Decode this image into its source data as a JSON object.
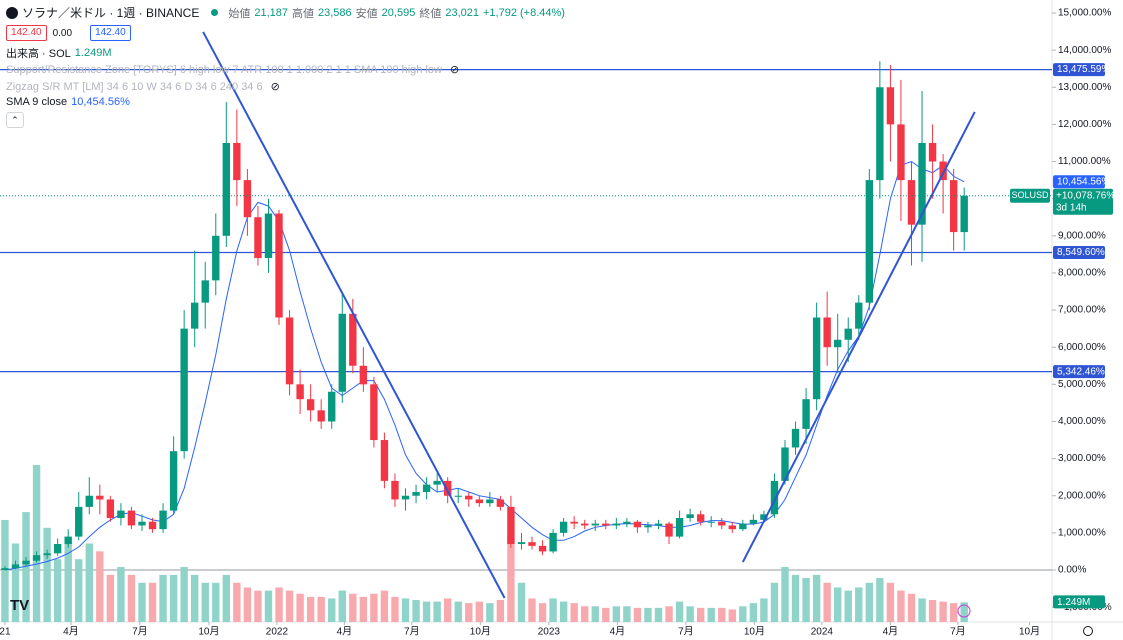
{
  "chart_data": {
    "type": "candlestick",
    "title": "ソラナ／米ドル · 1週 · BINANCE",
    "ohlc_legend": [
      {
        "label": "始値",
        "value": "21,187"
      },
      {
        "label": "高値",
        "value": "23,586"
      },
      {
        "label": "安値",
        "value": "20,595"
      },
      {
        "label": "終値",
        "value": "23,021"
      }
    ],
    "change": "+1,792 (+8.44%)",
    "price_boxes": [
      "142.40",
      "0.00",
      "142.40"
    ],
    "volume_title": "出来高 · SOL",
    "indicators": [
      "Support/Resistance Zone [TORYS] 6 high low 7 ATR 100 1 1.000 2 1 1 SMA 100 high low",
      "Zigzag S/R MT [LM] 34 6 10 W 34 6 D 34 6 240 34 6"
    ],
    "sma_title": "SMA 9 close",
    "sma_label": "10,454.56%",
    "symbol_tag": "SOLUSD",
    "last_price_label": "+10,078.76%",
    "countdown": "3d 14h",
    "up_color": "#089981",
    "down_color": "#f23645",
    "sma_color": "#2962ff",
    "level_color": "#2f55d4",
    "xlim": [
      -0.47,
      99.33
    ],
    "ylim": [
      -1400,
      15350
    ],
    "xticks": [
      {
        "value": 0,
        "label": "21"
      },
      {
        "value": 6.26,
        "label": "4月"
      },
      {
        "value": 12.8,
        "label": "7月"
      },
      {
        "value": 19.35,
        "label": "10月"
      },
      {
        "value": 25.8,
        "label": "2022"
      },
      {
        "value": 32.2,
        "label": "4月"
      },
      {
        "value": 38.6,
        "label": "7月"
      },
      {
        "value": 45.1,
        "label": "10月"
      },
      {
        "value": 51.6,
        "label": "2023"
      },
      {
        "value": 58.1,
        "label": "4月"
      },
      {
        "value": 64.6,
        "label": "7月"
      },
      {
        "value": 71.1,
        "label": "10月"
      },
      {
        "value": 77.5,
        "label": "2024"
      },
      {
        "value": 84,
        "label": "4月"
      },
      {
        "value": 90.4,
        "label": "7月"
      },
      {
        "value": 97.2,
        "label": "10月"
      }
    ],
    "yticks": [
      {
        "value": -1000,
        "label": "−1,000.00%"
      },
      {
        "value": 0,
        "label": "0.00%"
      },
      {
        "value": 1000,
        "label": "1,000.00%"
      },
      {
        "value": 2000,
        "label": "2,000.00%"
      },
      {
        "value": 3000,
        "label": "3,000.00%"
      },
      {
        "value": 4000,
        "label": "4,000.00%"
      },
      {
        "value": 5000,
        "label": "5,000.00%"
      },
      {
        "value": 6000,
        "label": "6,000.00%"
      },
      {
        "value": 7000,
        "label": "7,000.00%"
      },
      {
        "value": 8000,
        "label": "8,000.00%"
      },
      {
        "value": 9000,
        "label": "9,000.00%"
      },
      {
        "value": 10000,
        "label": "10,000.00%"
      },
      {
        "value": 11000,
        "label": "11,000.00%"
      },
      {
        "value": 12000,
        "label": "12,000.00%"
      },
      {
        "value": 13000,
        "label": "13,000.00%"
      },
      {
        "value": 14000,
        "label": "14,000.00%"
      },
      {
        "value": 15000,
        "label": "15,000.00%"
      }
    ],
    "open": [
      0,
      50,
      150,
      250,
      400,
      450,
      700,
      900,
      1700,
      2000,
      1900,
      1400,
      1600,
      1200,
      1300,
      1100,
      1600,
      3200,
      6500,
      7200,
      7800,
      9000,
      11500,
      10500,
      9500,
      8400,
      9600,
      6800,
      5000,
      4600,
      4300,
      4000,
      4800,
      6900,
      5500,
      5000,
      3500,
      2400,
      1900,
      2000,
      2100,
      2300,
      2400,
      2000,
      2000,
      1900,
      1800,
      1900,
      1700,
      700,
      750,
      650,
      500,
      1000,
      1300,
      1250,
      1200,
      1250,
      1200,
      1250,
      1300,
      1150,
      1200,
      1250,
      900,
      1400,
      1500,
      1300,
      1300,
      1200,
      1100,
      1250,
      1350,
      1500,
      2400,
      3300,
      3800,
      4600,
      6800,
      6000,
      6200,
      6500,
      7200,
      10500,
      13000,
      12000,
      10500,
      9300,
      11500,
      11000,
      10500,
      9100
    ],
    "high": [
      100,
      250,
      350,
      500,
      550,
      850,
      1100,
      2100,
      2500,
      2300,
      2000,
      1800,
      1700,
      1500,
      1400,
      1800,
      3600,
      7000,
      8600,
      8300,
      9600,
      12600,
      12400,
      10800,
      9800,
      10000,
      9700,
      7000,
      5400,
      5000,
      4600,
      5000,
      7500,
      7300,
      6000,
      5200,
      3700,
      2600,
      2200,
      2300,
      2500,
      2600,
      2500,
      2200,
      2100,
      2000,
      2100,
      2000,
      2000,
      1000,
      900,
      800,
      1100,
      1400,
      1450,
      1350,
      1350,
      1350,
      1400,
      1400,
      1350,
      1300,
      1350,
      1300,
      1600,
      1650,
      1600,
      1450,
      1400,
      1300,
      1350,
      1500,
      1600,
      2600,
      3500,
      4000,
      4900,
      7200,
      7500,
      6900,
      6800,
      7400,
      10800,
      13700,
      13600,
      13200,
      11000,
      12900,
      12000,
      11200,
      10800,
      10300
    ],
    "low": [
      0,
      20,
      100,
      200,
      300,
      380,
      600,
      800,
      1500,
      1500,
      1300,
      1200,
      1100,
      1050,
      1000,
      1000,
      1500,
      3000,
      6000,
      6500,
      7400,
      8700,
      9800,
      9000,
      8200,
      8000,
      6600,
      4700,
      4200,
      4000,
      3800,
      3800,
      4500,
      5300,
      4800,
      3300,
      2200,
      1700,
      1600,
      1800,
      1900,
      2100,
      1800,
      1800,
      1700,
      1700,
      1700,
      1600,
      600,
      550,
      550,
      400,
      450,
      900,
      1100,
      1100,
      1050,
      1100,
      1100,
      1150,
      1000,
      1000,
      1100,
      700,
      850,
      1300,
      1200,
      1150,
      1100,
      1000,
      1050,
      1200,
      1300,
      1400,
      2300,
      3100,
      3400,
      4300,
      5500,
      5300,
      5600,
      6200,
      7000,
      10000,
      11000,
      9400,
      8200,
      8300,
      10000,
      9600,
      8600,
      8600
    ],
    "close": [
      50,
      150,
      250,
      400,
      450,
      700,
      900,
      1700,
      2000,
      1900,
      1400,
      1600,
      1200,
      1300,
      1100,
      1600,
      3200,
      6500,
      7200,
      7800,
      9000,
      11500,
      10500,
      9500,
      8400,
      9600,
      6800,
      5000,
      4600,
      4300,
      4000,
      4800,
      6900,
      5500,
      5000,
      3500,
      2400,
      1900,
      2000,
      2100,
      2300,
      2400,
      2000,
      2000,
      1900,
      1800,
      1900,
      1700,
      700,
      750,
      650,
      500,
      1000,
      1300,
      1250,
      1200,
      1250,
      1200,
      1250,
      1300,
      1150,
      1200,
      1250,
      900,
      1400,
      1500,
      1300,
      1300,
      1200,
      1100,
      1250,
      1350,
      1500,
      2400,
      3300,
      3800,
      4600,
      6800,
      6000,
      6200,
      6500,
      7200,
      10500,
      13000,
      12000,
      10500,
      9300,
      11500,
      11000,
      10500,
      9100,
      10078.76
    ],
    "sma": [
      0,
      50,
      100,
      160,
      230,
      320,
      450,
      620,
      900,
      1150,
      1350,
      1500,
      1550,
      1450,
      1350,
      1300,
      1500,
      2200,
      3300,
      4500,
      5800,
      7300,
      8600,
      9500,
      9900,
      9800,
      9400,
      8600,
      7500,
      6500,
      5600,
      4900,
      4700,
      4900,
      5100,
      5100,
      4600,
      3900,
      3100,
      2600,
      2300,
      2100,
      2150,
      2200,
      2100,
      2000,
      1950,
      1900,
      1650,
      1400,
      1150,
      950,
      800,
      800,
      900,
      1050,
      1150,
      1200,
      1230,
      1250,
      1240,
      1220,
      1200,
      1150,
      1150,
      1200,
      1280,
      1330,
      1330,
      1280,
      1230,
      1240,
      1290,
      1500,
      1900,
      2500,
      3100,
      3900,
      4700,
      5400,
      5900,
      6300,
      7100,
      8500,
      10000,
      10900,
      11000,
      10800,
      10700,
      10900,
      10600,
      10454.56
    ],
    "volume": {
      "values": [
        6.5,
        5,
        7,
        10,
        6,
        4,
        5,
        4,
        5,
        4.5,
        3,
        3.5,
        3,
        2.5,
        2.5,
        3,
        3,
        3.5,
        3,
        2.5,
        2.5,
        3,
        2.5,
        2.2,
        2,
        2,
        2.2,
        2,
        1.8,
        1.6,
        1.6,
        1.5,
        2,
        1.8,
        1.6,
        1.8,
        2,
        1.6,
        1.5,
        1.4,
        1.3,
        1.3,
        1.5,
        1.3,
        1.2,
        1.3,
        1.2,
        1.4,
        5.5,
        2.5,
        1.5,
        1.2,
        1.5,
        1.3,
        1.2,
        1,
        1,
        0.9,
        1,
        1,
        0.9,
        0.9,
        0.9,
        1,
        1.3,
        1,
        0.9,
        0.9,
        0.9,
        0.8,
        1,
        1.2,
        1.5,
        2.5,
        3.5,
        3,
        2.8,
        3,
        2.5,
        2.2,
        2,
        2.2,
        2.5,
        2.8,
        2.5,
        2,
        1.8,
        1.5,
        1.4,
        1.3,
        1.2,
        1.249
      ],
      "ylim": [
        0,
        10
      ],
      "last_label": "1.249M",
      "up_color": "#8fd3c9",
      "down_color": "#f7a9ae"
    },
    "levels": [
      {
        "value": 13475.59,
        "label": "13,475.59%"
      },
      {
        "value": 8549.6,
        "label": "8,549.60%"
      },
      {
        "value": 5342.46,
        "label": "5,342.46%"
      }
    ],
    "trendlines": [
      {
        "x": [
          18.8,
          47.4
        ],
        "y": [
          14490,
          -754
        ]
      },
      {
        "x": [
          70.0,
          92.0
        ],
        "y": [
          215,
          12335
        ]
      }
    ]
  }
}
